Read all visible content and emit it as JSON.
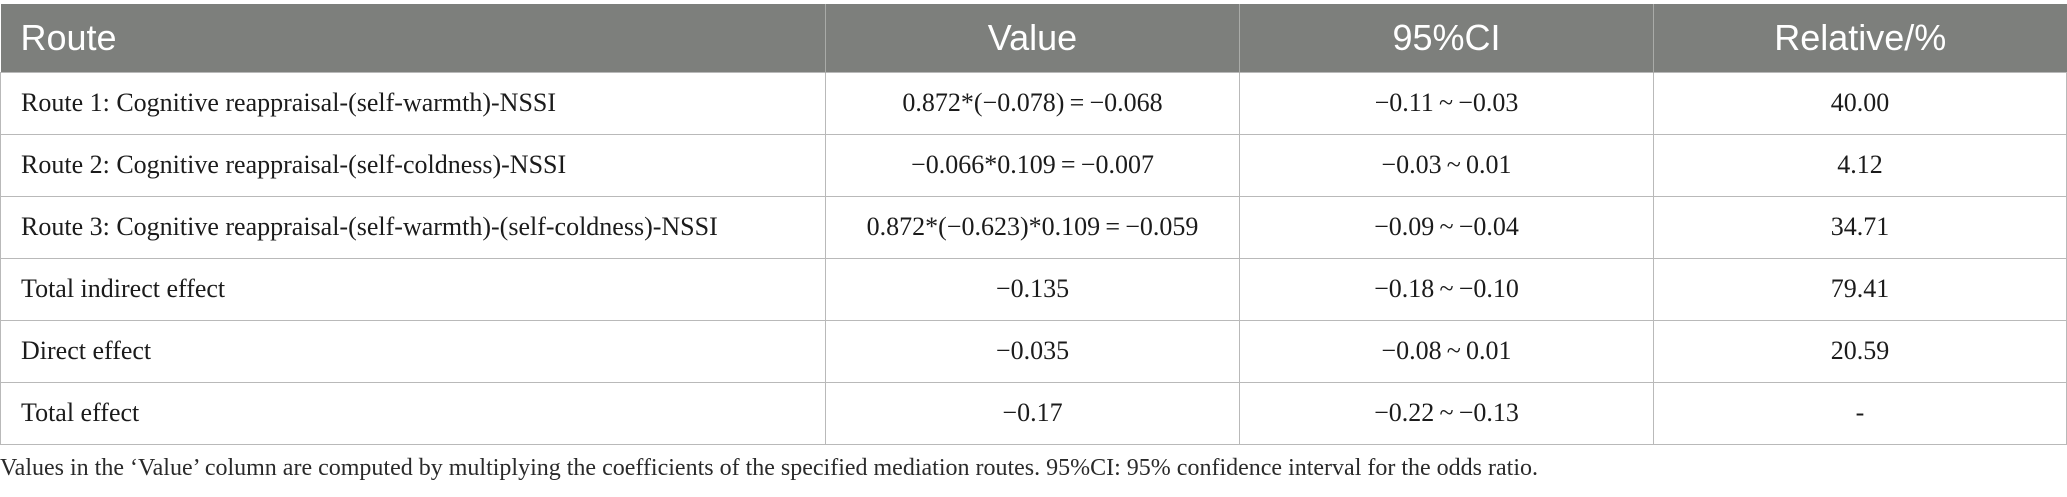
{
  "table": {
    "headers": [
      "Route",
      "Value",
      "95%CI",
      "Relative/%"
    ],
    "rows": [
      [
        "Route 1: Cognitive reappraisal-(self-warmth)-NSSI",
        "0.872*(−0.078) = −0.068",
        "−0.11 ~ −0.03",
        "40.00"
      ],
      [
        "Route 2: Cognitive reappraisal-(self-coldness)-NSSI",
        "−0.066*0.109 = −0.007",
        "−0.03 ~ 0.01",
        "4.12"
      ],
      [
        "Route 3: Cognitive reappraisal-(self-warmth)-(self-coldness)-NSSI",
        "0.872*(−0.623)*0.109 = −0.059",
        "−0.09 ~ −0.04",
        "34.71"
      ],
      [
        "Total indirect effect",
        "−0.135",
        "−0.18 ~ −0.10",
        "79.41"
      ],
      [
        "Direct effect",
        "−0.035",
        "−0.08 ~ 0.01",
        "20.59"
      ],
      [
        "Total effect",
        "−0.17",
        "−0.22 ~ −0.13",
        "-"
      ]
    ]
  },
  "footnote": "Values in the ‘Value’ column are computed by multiplying the coefficients of the specified mediation routes. 95%CI: 95% confidence interval for the odds ratio.",
  "colors": {
    "header_bg": "#7d7f7c",
    "header_text": "#ffffff",
    "grid_line": "#b9b9b9"
  }
}
